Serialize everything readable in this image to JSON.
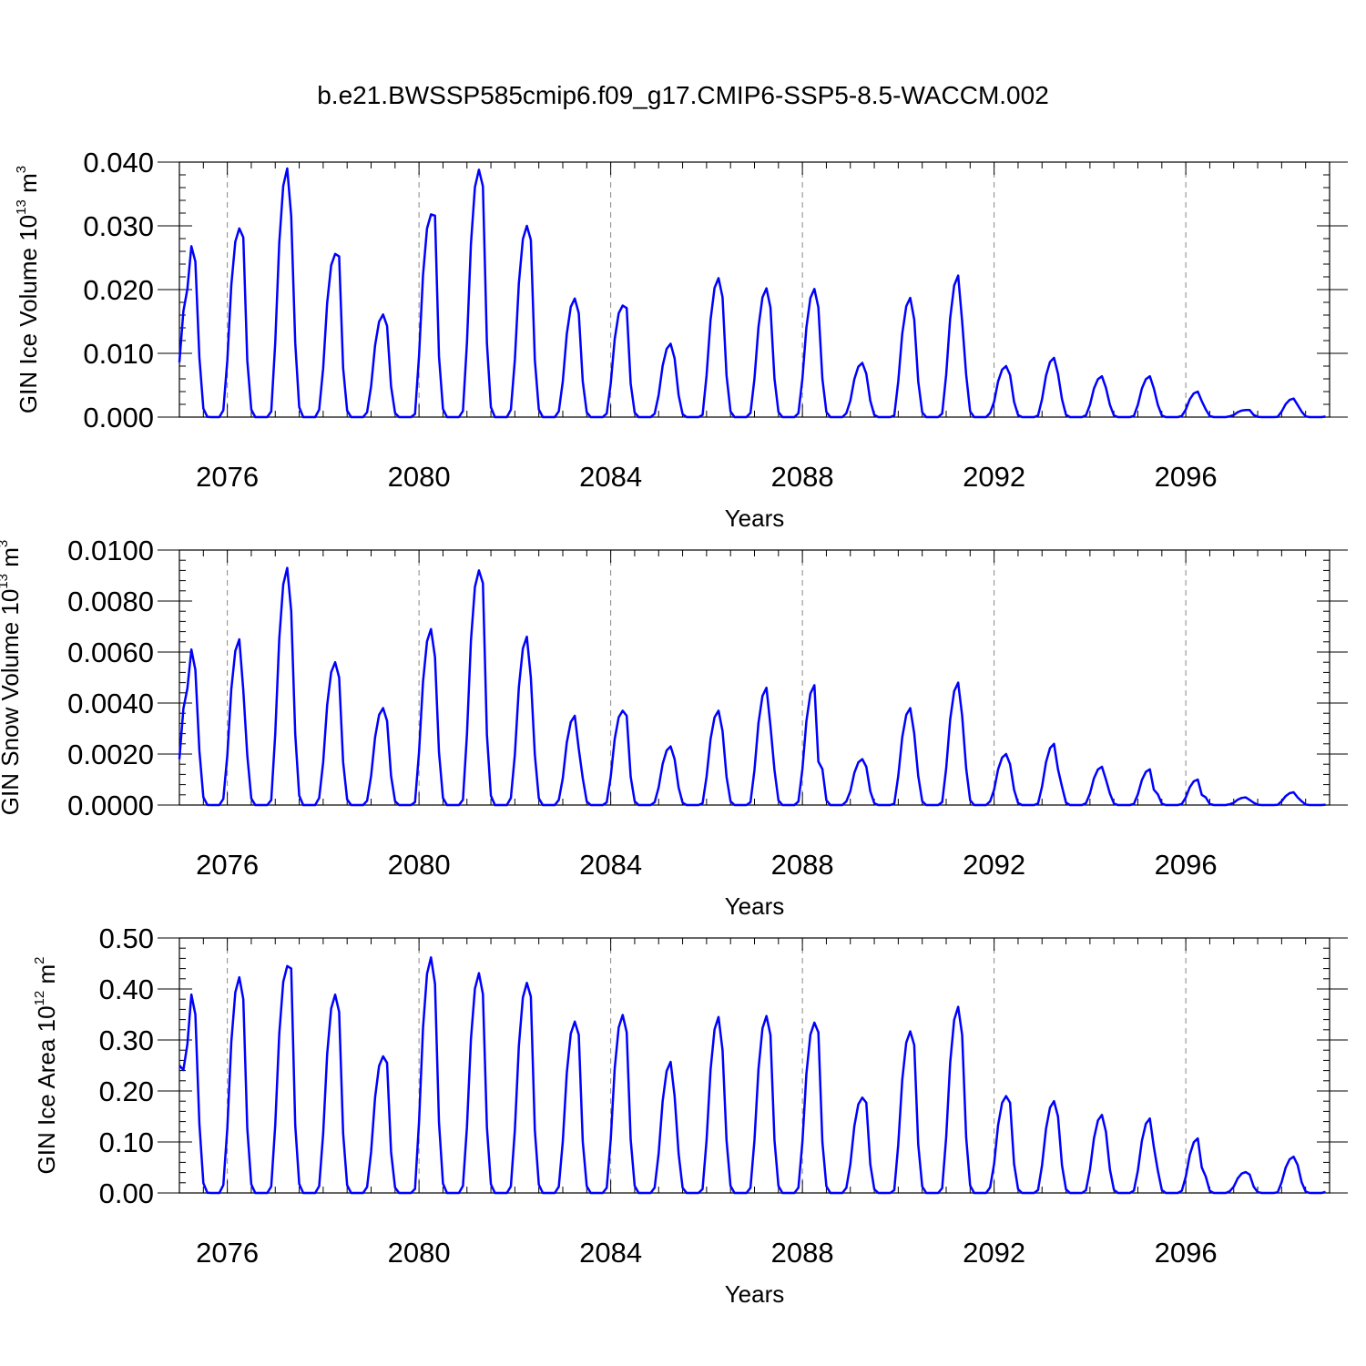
{
  "figure": {
    "title": "b.e21.BWSSP585cmip6.f09_g17.CMIP6-SSP5-8.5-WACCM.002",
    "line_color": "#0000ff"
  },
  "chart_data": [
    {
      "type": "line",
      "title": "",
      "xlabel": "Years",
      "ylabel": {
        "main": "GIN Ice Volume 10",
        "exp": "13",
        "unit": " m",
        "unit_exp": "3"
      },
      "xlim": [
        2075,
        2099
      ],
      "ylim": [
        0.0,
        0.04
      ],
      "x_ticks": [
        2076,
        2080,
        2084,
        2088,
        2092,
        2096
      ],
      "x_tick_labels": [
        "2076",
        "2080",
        "2084",
        "2088",
        "2092",
        "2096"
      ],
      "y_ticks": [
        0.0,
        0.01,
        0.02,
        0.03,
        0.04
      ],
      "y_tick_labels": [
        "0.000",
        "0.010",
        "0.020",
        "0.030",
        "0.040"
      ],
      "grid": "dashed vertical at major x ticks",
      "series": [
        {
          "peaks": [
            0.0268,
            0.0296,
            0.039,
            0.0256,
            0.0161,
            0.0318,
            0.0388,
            0.03,
            0.0186,
            0.0175,
            0.0115,
            0.0218,
            0.0202,
            0.0201,
            0.0085,
            0.0187,
            0.0222,
            0.008,
            0.0093,
            0.0064,
            0.0064,
            0.004,
            0.0011,
            0.0029
          ],
          "shoulders": [
            0.0244,
            0.0282,
            0.0315,
            0.0252,
            0.0143,
            0.0316,
            0.0362,
            0.0278,
            0.0163,
            0.0171,
            0.0092,
            0.0188,
            0.0172,
            0.0172,
            0.0068,
            0.0153,
            0.015,
            0.0066,
            0.0068,
            0.0046,
            0.0045,
            0.0025,
            0.0011,
            0.0019
          ],
          "start_value": 0.0086
        }
      ]
    },
    {
      "type": "line",
      "title": "",
      "xlabel": "Years",
      "ylabel": {
        "main": "GIN Snow Volume 10",
        "exp": "13",
        "unit": " m",
        "unit_exp": "3"
      },
      "xlim": [
        2075,
        2099
      ],
      "ylim": [
        0.0,
        0.01
      ],
      "x_ticks": [
        2076,
        2080,
        2084,
        2088,
        2092,
        2096
      ],
      "x_tick_labels": [
        "2076",
        "2080",
        "2084",
        "2088",
        "2092",
        "2096"
      ],
      "y_ticks": [
        0.0,
        0.002,
        0.004,
        0.006,
        0.008,
        0.01
      ],
      "y_tick_labels": [
        "0.0000",
        "0.0020",
        "0.0040",
        "0.0060",
        "0.0080",
        "0.0100"
      ],
      "grid": "dashed vertical at major x ticks",
      "series": [
        {
          "peaks": [
            0.0061,
            0.0065,
            0.0093,
            0.0056,
            0.0038,
            0.0069,
            0.0092,
            0.0066,
            0.0035,
            0.0037,
            0.0023,
            0.0037,
            0.0046,
            0.0047,
            0.0018,
            0.0038,
            0.0048,
            0.002,
            0.0024,
            0.0015,
            0.0014,
            0.001,
            0.0003,
            0.0005
          ],
          "shoulders": [
            0.0053,
            0.0045,
            0.0076,
            0.005,
            0.0033,
            0.0058,
            0.0087,
            0.005,
            0.0022,
            0.0035,
            0.0018,
            0.0029,
            0.0031,
            0.0017,
            0.0015,
            0.0028,
            0.0035,
            0.0016,
            0.0014,
            0.001,
            0.0006,
            0.0004,
            0.0002,
            0.0003
          ],
          "start_value": 0.0018
        }
      ]
    },
    {
      "type": "line",
      "title": "",
      "xlabel": "Years",
      "ylabel": {
        "main": "GIN Ice Area 10",
        "exp": "12",
        "unit": " m",
        "unit_exp": "2"
      },
      "xlim": [
        2075,
        2099
      ],
      "ylim": [
        0.0,
        0.5
      ],
      "x_ticks": [
        2076,
        2080,
        2084,
        2088,
        2092,
        2096
      ],
      "x_tick_labels": [
        "2076",
        "2080",
        "2084",
        "2088",
        "2092",
        "2096"
      ],
      "y_ticks": [
        0.0,
        0.1,
        0.2,
        0.3,
        0.4,
        0.5
      ],
      "y_tick_labels": [
        "0.00",
        "0.10",
        "0.20",
        "0.30",
        "0.40",
        "0.50"
      ],
      "grid": "dashed vertical at major x ticks",
      "series": [
        {
          "peaks": [
            0.389,
            0.423,
            0.445,
            0.389,
            0.268,
            0.462,
            0.431,
            0.412,
            0.336,
            0.349,
            0.257,
            0.345,
            0.347,
            0.334,
            0.187,
            0.317,
            0.365,
            0.19,
            0.18,
            0.153,
            0.146,
            0.107,
            0.041,
            0.071
          ],
          "shoulders": [
            0.35,
            0.38,
            0.44,
            0.355,
            0.255,
            0.41,
            0.39,
            0.385,
            0.31,
            0.315,
            0.19,
            0.28,
            0.31,
            0.315,
            0.177,
            0.29,
            0.31,
            0.177,
            0.15,
            0.12,
            0.09,
            0.05,
            0.036,
            0.055
          ],
          "start_value": 0.25
        }
      ]
    }
  ]
}
